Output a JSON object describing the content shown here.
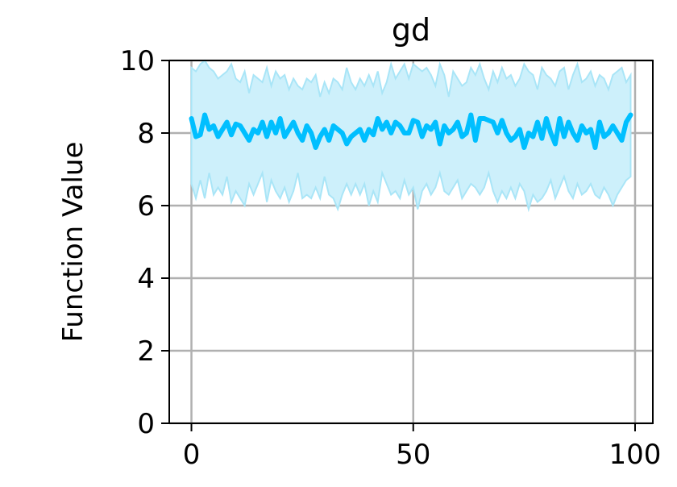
{
  "chart_data": {
    "type": "line",
    "title": "gd",
    "xlabel": "",
    "ylabel": "Function Value",
    "xlim": [
      -5,
      104
    ],
    "ylim": [
      0,
      10
    ],
    "xticks": [
      0,
      50,
      100
    ],
    "yticks": [
      0,
      2,
      4,
      6,
      8,
      10
    ],
    "grid": true,
    "legend": "none",
    "colors": {
      "line": "#00bfff",
      "band_fill": "#cdf0fb",
      "band_edge": "#a9e5f7",
      "grid": "#b0b0b0",
      "axis": "#000000"
    },
    "series": [
      {
        "x": [
          0,
          1,
          2,
          3,
          4,
          5,
          6,
          7,
          8,
          9,
          10,
          11,
          12,
          13,
          14,
          15,
          16,
          17,
          18,
          19,
          20,
          21,
          22,
          23,
          24,
          25,
          26,
          27,
          28,
          29,
          30,
          31,
          32,
          33,
          34,
          35,
          36,
          37,
          38,
          39,
          40,
          41,
          42,
          43,
          44,
          45,
          46,
          47,
          48,
          49,
          50,
          51,
          52,
          53,
          54,
          55,
          56,
          57,
          58,
          59,
          60,
          61,
          62,
          63,
          64,
          65,
          66,
          67,
          68,
          69,
          70,
          71,
          72,
          73,
          74,
          75,
          76,
          77,
          78,
          79,
          80,
          81,
          82,
          83,
          84,
          85,
          86,
          87,
          88,
          89,
          90,
          91,
          92,
          93,
          94,
          95,
          96,
          97,
          98,
          99
        ],
        "y": [
          8.4,
          7.9,
          7.95,
          8.5,
          8.1,
          8.2,
          7.9,
          8.1,
          8.3,
          7.95,
          8.25,
          8.2,
          8.0,
          7.8,
          8.1,
          8.0,
          8.3,
          7.9,
          8.3,
          8.0,
          8.4,
          7.9,
          8.1,
          8.3,
          8.0,
          7.8,
          8.2,
          8.0,
          7.6,
          7.9,
          8.1,
          7.8,
          8.2,
          8.1,
          8.0,
          7.7,
          7.9,
          8.0,
          8.1,
          7.8,
          8.1,
          7.95,
          8.4,
          8.1,
          8.3,
          8.0,
          8.3,
          8.2,
          8.0,
          8.0,
          8.35,
          8.3,
          7.9,
          8.2,
          8.1,
          8.3,
          7.7,
          8.2,
          8.0,
          8.1,
          8.3,
          7.9,
          8.0,
          8.5,
          7.8,
          8.4,
          8.4,
          8.35,
          8.3,
          8.0,
          8.35,
          8.0,
          7.8,
          7.9,
          8.1,
          7.6,
          8.0,
          7.9,
          8.3,
          7.85,
          8.4,
          8.0,
          7.7,
          8.4,
          7.9,
          8.3,
          8.0,
          7.8,
          8.2,
          8.0,
          8.1,
          7.6,
          8.3,
          7.9,
          8.0,
          8.2,
          8.0,
          7.8,
          8.3,
          8.5
        ],
        "lower": [
          6.6,
          6.2,
          6.7,
          6.2,
          6.9,
          6.3,
          6.5,
          6.3,
          6.8,
          6.1,
          6.4,
          6.2,
          6.0,
          6.6,
          6.3,
          6.6,
          6.9,
          6.1,
          6.7,
          6.4,
          6.2,
          6.5,
          6.1,
          6.4,
          6.9,
          6.2,
          6.3,
          6.2,
          6.5,
          6.2,
          6.8,
          6.3,
          6.2,
          5.9,
          6.3,
          6.6,
          6.3,
          6.6,
          6.3,
          6.6,
          6.0,
          6.4,
          6.1,
          6.9,
          6.6,
          6.3,
          6.4,
          6.2,
          6.7,
          6.3,
          6.5,
          5.9,
          6.4,
          6.6,
          6.3,
          6.5,
          6.9,
          6.4,
          6.3,
          6.5,
          6.7,
          6.2,
          6.4,
          6.6,
          6.5,
          6.3,
          6.5,
          6.9,
          6.4,
          6.1,
          6.4,
          6.2,
          6.5,
          6.2,
          6.6,
          6.4,
          5.9,
          6.3,
          6.1,
          6.2,
          6.4,
          6.7,
          6.2,
          6.5,
          6.8,
          6.4,
          6.2,
          6.6,
          6.3,
          6.4,
          6.6,
          6.3,
          6.2,
          6.5,
          6.3,
          6.0,
          6.3,
          6.5,
          6.7,
          6.8
        ],
        "upper": [
          9.8,
          9.7,
          9.9,
          10.0,
          9.8,
          9.7,
          9.5,
          9.6,
          9.7,
          9.9,
          9.5,
          9.4,
          9.7,
          9.1,
          9.6,
          9.5,
          9.4,
          9.8,
          9.3,
          9.7,
          9.5,
          9.6,
          9.2,
          9.5,
          9.3,
          9.2,
          9.5,
          9.4,
          9.6,
          9.0,
          9.4,
          9.1,
          9.5,
          9.4,
          9.2,
          9.8,
          9.4,
          9.2,
          9.5,
          9.3,
          9.6,
          9.3,
          9.7,
          9.1,
          9.4,
          9.9,
          9.5,
          9.7,
          9.9,
          9.5,
          9.9,
          9.8,
          9.7,
          9.8,
          9.6,
          9.3,
          9.9,
          9.6,
          9.0,
          9.7,
          9.5,
          9.3,
          9.4,
          9.8,
          9.6,
          9.9,
          9.5,
          9.2,
          9.7,
          9.4,
          9.8,
          9.5,
          9.6,
          9.3,
          9.5,
          9.9,
          9.7,
          9.6,
          9.2,
          9.8,
          9.6,
          9.5,
          9.3,
          9.7,
          9.8,
          9.2,
          9.6,
          9.9,
          9.4,
          9.5,
          9.7,
          9.3,
          9.6,
          9.5,
          9.2,
          9.6,
          9.7,
          9.8,
          9.4,
          9.6
        ]
      }
    ]
  }
}
